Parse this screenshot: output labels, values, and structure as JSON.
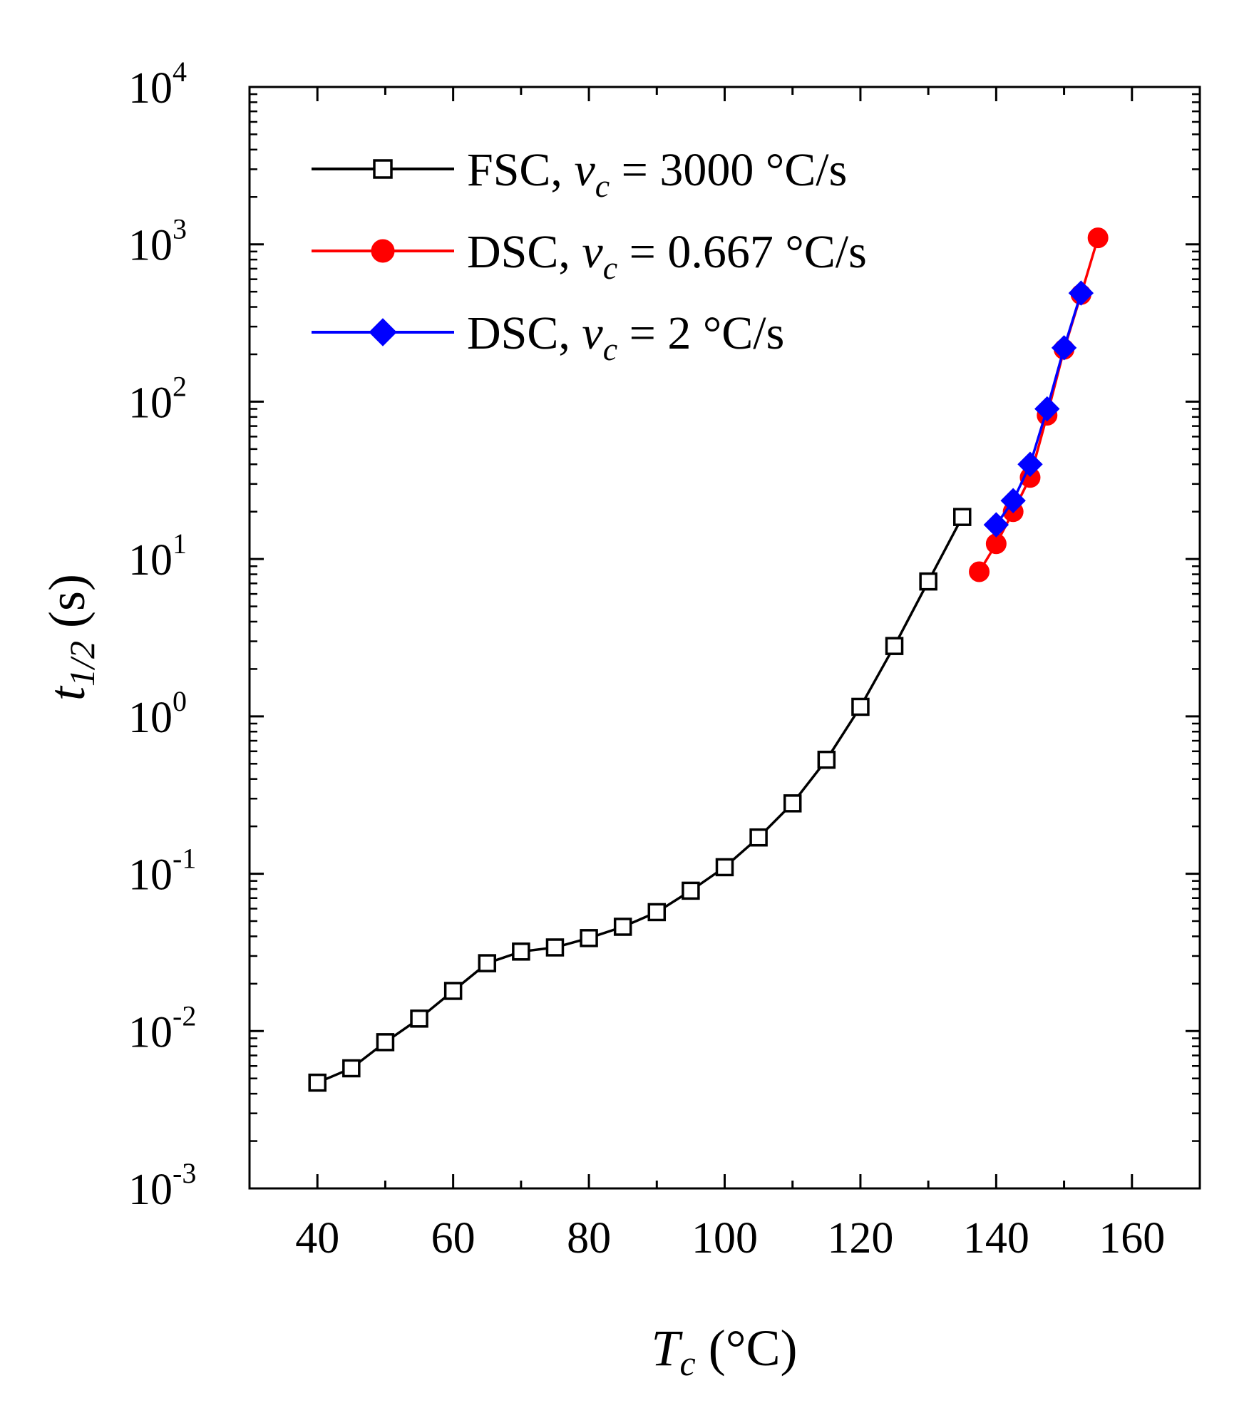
{
  "chart_data": {
    "type": "line",
    "title": "",
    "xlabel": {
      "symbol": "T",
      "subscript": "c",
      "unit": " (°C)"
    },
    "ylabel": {
      "symbol": "t",
      "subscript": "1/2",
      "unit": " (s)"
    },
    "xlim": [
      30,
      170
    ],
    "ylim": [
      0.001,
      10000
    ],
    "yscale": "log",
    "x_ticks": [
      40,
      60,
      80,
      100,
      120,
      140,
      160
    ],
    "x_tick_labels": [
      "40",
      "60",
      "80",
      "100",
      "120",
      "140",
      "160"
    ],
    "y_ticks": [
      0.001,
      0.01,
      0.1,
      1,
      10,
      100,
      1000,
      10000
    ],
    "y_tick_labels": [
      {
        "base": "10",
        "exp": "-3"
      },
      {
        "base": "10",
        "exp": "-2"
      },
      {
        "base": "10",
        "exp": "-1"
      },
      {
        "base": "10",
        "exp": "0"
      },
      {
        "base": "10",
        "exp": "1"
      },
      {
        "base": "10",
        "exp": "2"
      },
      {
        "base": "10",
        "exp": "3"
      },
      {
        "base": "10",
        "exp": "4"
      }
    ],
    "legend_position": "top-left",
    "series": [
      {
        "name": "FSC, v_c = 3000 °C/s",
        "label_prefix": "FSC, ",
        "label_var": "v",
        "label_sub": "c",
        "label_suffix": " = 3000 °C/s",
        "color": "#000000",
        "marker": "open-square",
        "x": [
          40,
          45,
          50,
          55,
          60,
          65,
          70,
          75,
          80,
          85,
          90,
          95,
          100,
          105,
          110,
          115,
          120,
          125,
          130,
          135
        ],
        "y": [
          0.0047,
          0.0058,
          0.0085,
          0.012,
          0.018,
          0.027,
          0.032,
          0.034,
          0.039,
          0.046,
          0.057,
          0.078,
          0.11,
          0.17,
          0.28,
          0.53,
          1.15,
          2.8,
          7.2,
          18.5
        ]
      },
      {
        "name": "DSC, v_c = 0.667 °C/s",
        "label_prefix": "DSC, ",
        "label_var": "v",
        "label_sub": "c",
        "label_suffix": " = 0.667 °C/s",
        "color": "#ff0000",
        "marker": "filled-circle",
        "x": [
          137.5,
          140,
          142.5,
          145,
          147.5,
          150,
          152.5,
          155
        ],
        "y": [
          8.3,
          12.5,
          20,
          33,
          82,
          215,
          480,
          1100
        ]
      },
      {
        "name": "DSC, v_c = 2 °C/s",
        "label_prefix": "DSC, ",
        "label_var": "v",
        "label_sub": "c",
        "label_suffix": " = 2 °C/s",
        "color": "#0000ff",
        "marker": "filled-diamond",
        "x": [
          140,
          142.5,
          145,
          147.5,
          150,
          152.5
        ],
        "y": [
          16.5,
          23.5,
          40,
          90,
          220,
          490
        ]
      }
    ]
  }
}
